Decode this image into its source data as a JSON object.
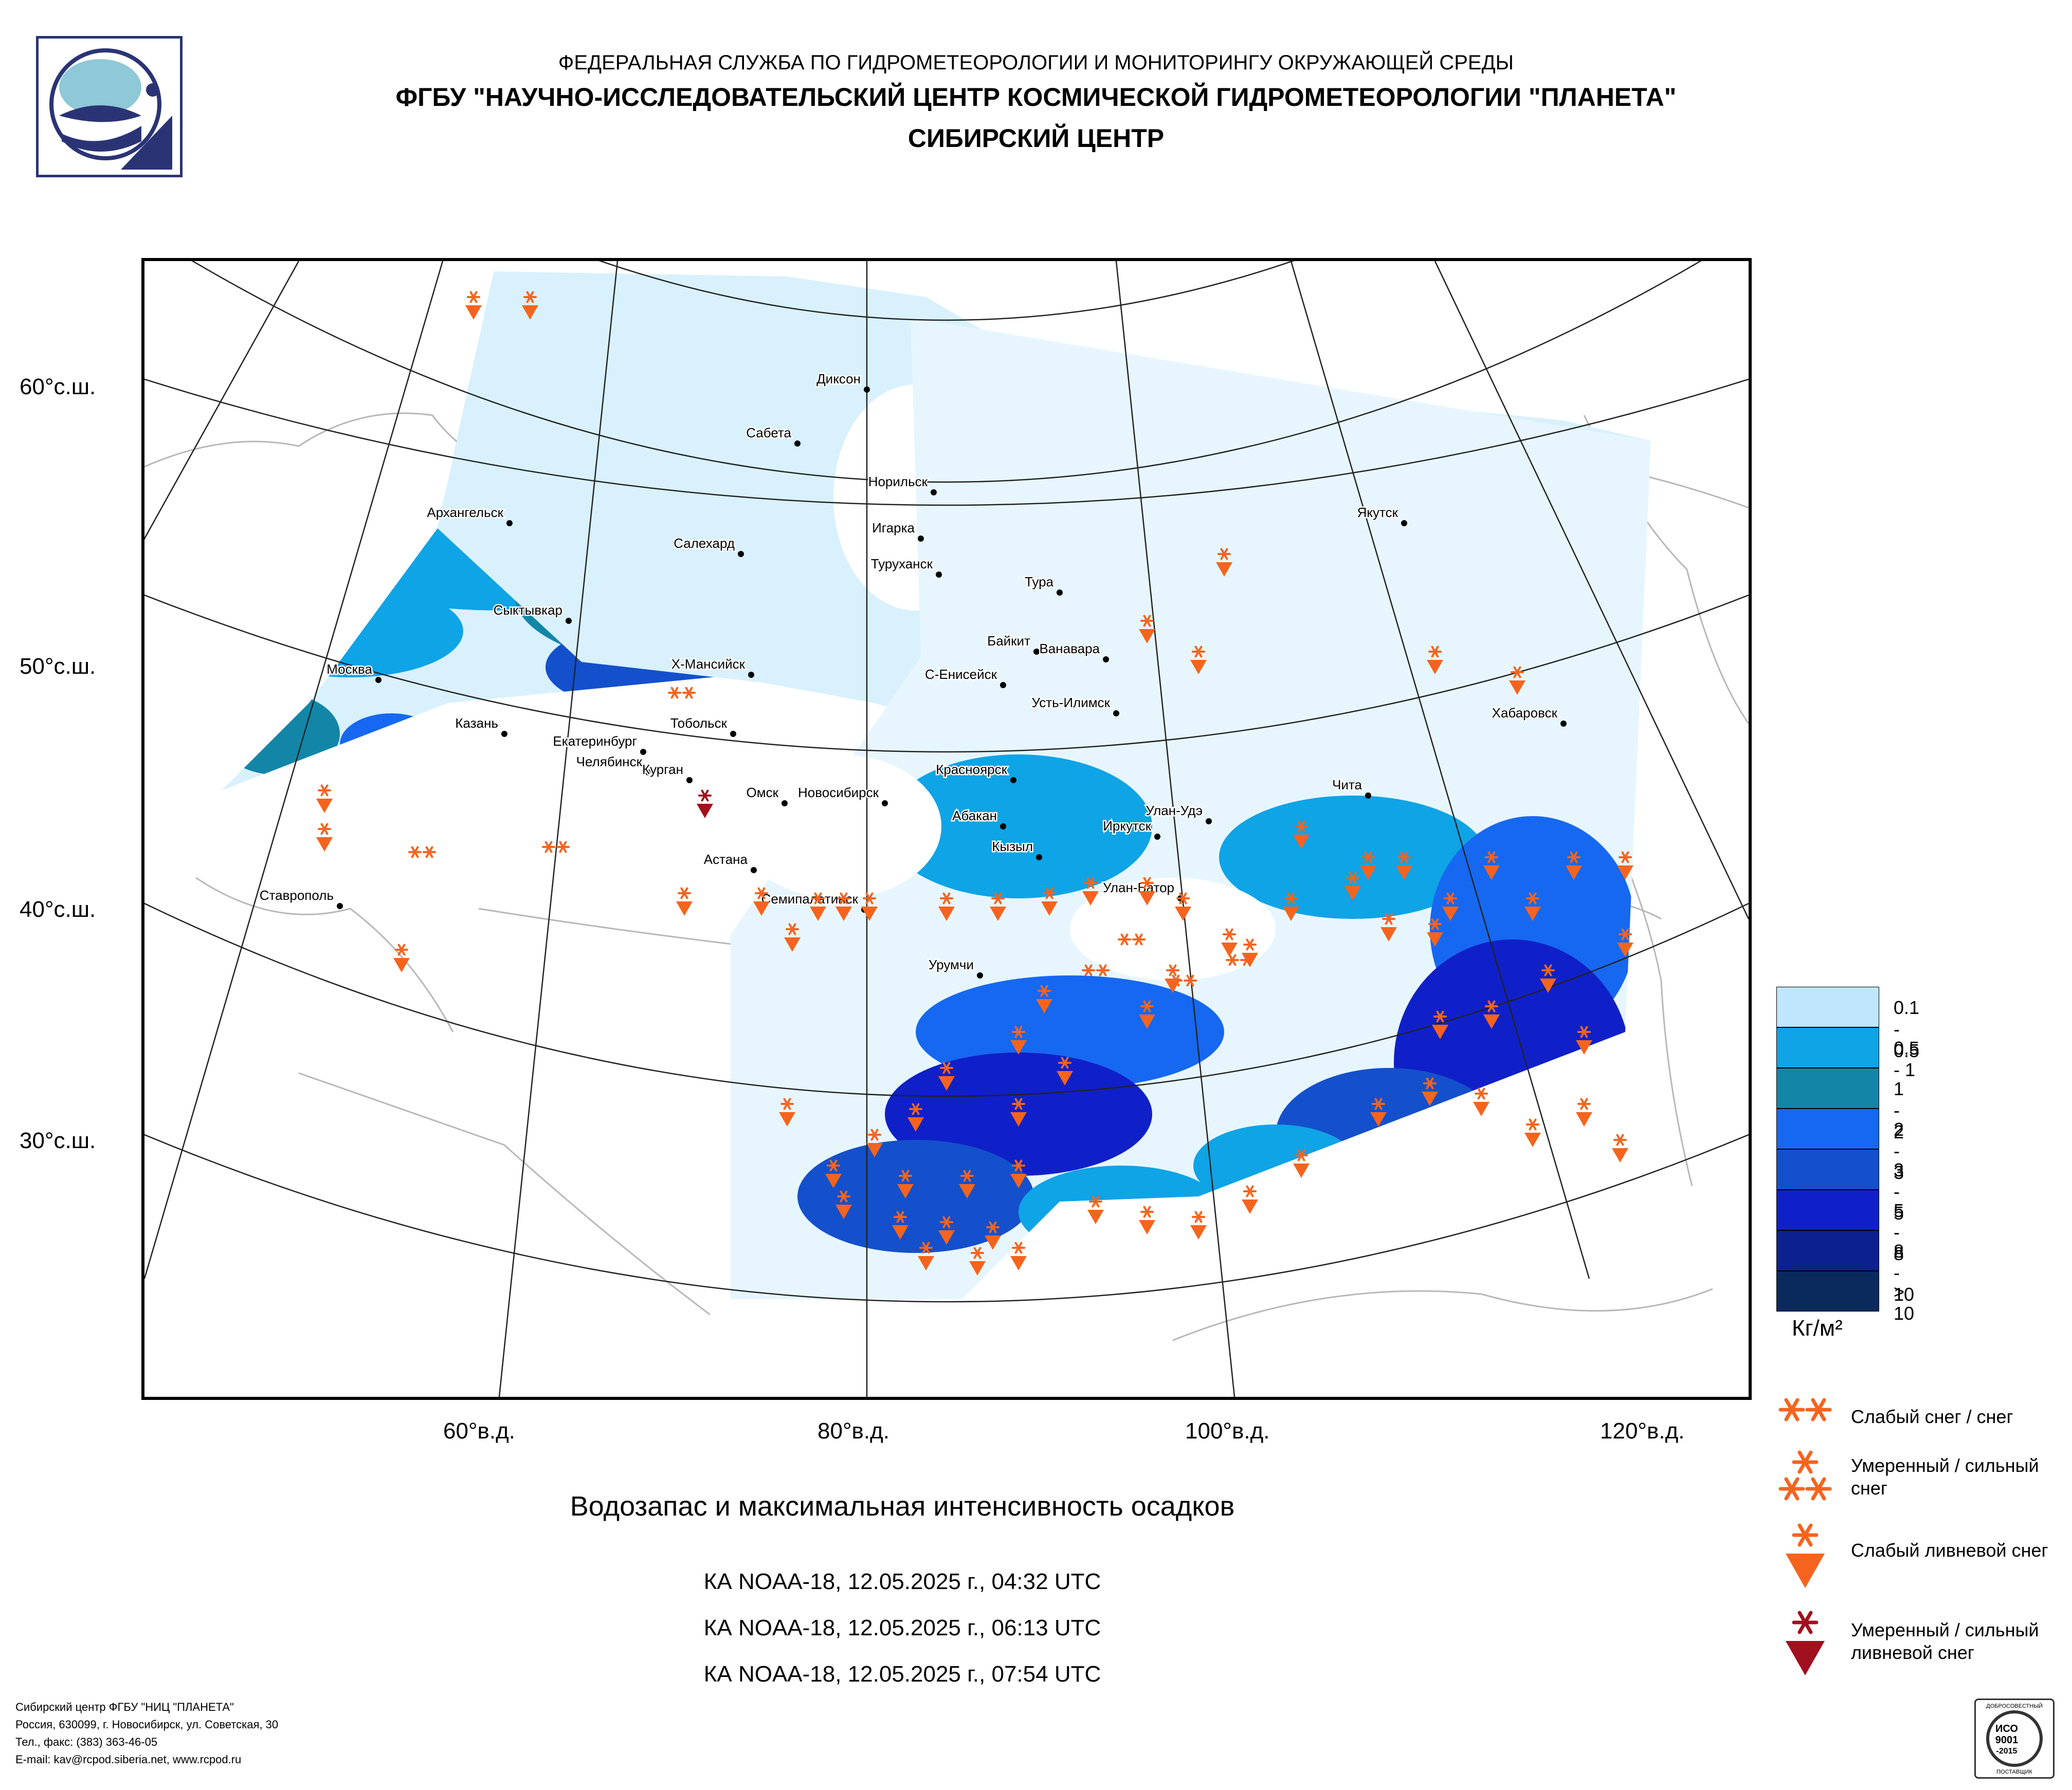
{
  "header": {
    "line1": "ФЕДЕРАЛЬНАЯ СЛУЖБА ПО ГИДРОМЕТЕОРОЛОГИИ И МОНИТОРИНГУ ОКРУЖАЮЩЕЙ СРЕДЫ",
    "line2": "ФГБУ \"НАУЧНО-ИССЛЕДОВАТЕЛЬСКИЙ ЦЕНТР КОСМИЧЕСКОЙ ГИДРОМЕТЕОРОЛОГИИ \"ПЛАНЕТА\"",
    "line3": "СИБИРСКИЙ ЦЕНТР"
  },
  "lat_labels": [
    "60°с.ш.",
    "50°с.ш.",
    "40°с.ш.",
    "30°с.ш."
  ],
  "lon_labels": [
    "60°в.д.",
    "80°в.д.",
    "100°в.д.",
    "120°в.д."
  ],
  "cities": [
    "Диксон",
    "Сабета",
    "Норильск",
    "Архангельск",
    "Салехард",
    "Игарка",
    "Туруханск",
    "Якутск",
    "Тура",
    "Сыктывкар",
    "Байкит",
    "Ванавара",
    "Москва",
    "Х-Мансийск",
    "С-Енисейск",
    "Усть-Илимск",
    "Хабаровск",
    "Казань",
    "Екатеринбург",
    "Тобольск",
    "Челябинск",
    "Курган",
    "Омск",
    "Новосибирск",
    "Красноярск",
    "Чита",
    "Абакан",
    "Улан-Удэ",
    "Иркутск",
    "Кызыл",
    "Астана",
    "Улан-Батор",
    "Ставрополь",
    "Семипалатинск",
    "Урумчи"
  ],
  "title": "Водозапас и максимальная интенсивность осадков",
  "passes": [
    "КА NOAA-18, 12.05.2025 г., 04:32 UTC",
    "КА NOAA-18, 12.05.2025 г., 06:13 UTC",
    "КА NOAA-18, 12.05.2025 г., 07:54 UTC"
  ],
  "legend": {
    "classes": [
      {
        "label": "0.1 - 0.5",
        "color": "#bfe6fb"
      },
      {
        "label": "0.5 - 1",
        "color": "#0ea4e6"
      },
      {
        "label": "1 - 2",
        "color": "#1386a8"
      },
      {
        "label": "2 - 3",
        "color": "#1668f0"
      },
      {
        "label": "3 - 5",
        "color": "#1450cc"
      },
      {
        "label": "5 - 8",
        "color": "#1020c8"
      },
      {
        "label": "8 - 10",
        "color": "#0c2090"
      },
      {
        "label": "> 10",
        "color": "#0a2a5e"
      }
    ],
    "unit": "Кг/м²",
    "symbols": [
      {
        "label": "Слабый снег / снег"
      },
      {
        "label": "Умеренный / сильный снег"
      },
      {
        "label": "Слабый ливневой снег"
      },
      {
        "label": "Умеренный / сильный ливневой снег"
      }
    ],
    "colors": {
      "snow": "#f5641e",
      "heavy_shower": "#a0101e"
    }
  },
  "footer": [
    "Сибирский центр ФГБУ \"НИЦ \"ПЛАНЕТА\"",
    "Россия, 630099, г. Новосибирск, ул. Советская, 30",
    "Тел., факс: (383) 363-46-05",
    "E-mail: kav@rcpod.siberia.net, www.rcpod.ru"
  ],
  "iso_badge": {
    "top": "ДОБРОСОВЕСТНЫЙ",
    "line1": "ИСО",
    "line2": "9001",
    "line3": "-2015",
    "bottom": "ПОСТАВЩИК"
  }
}
